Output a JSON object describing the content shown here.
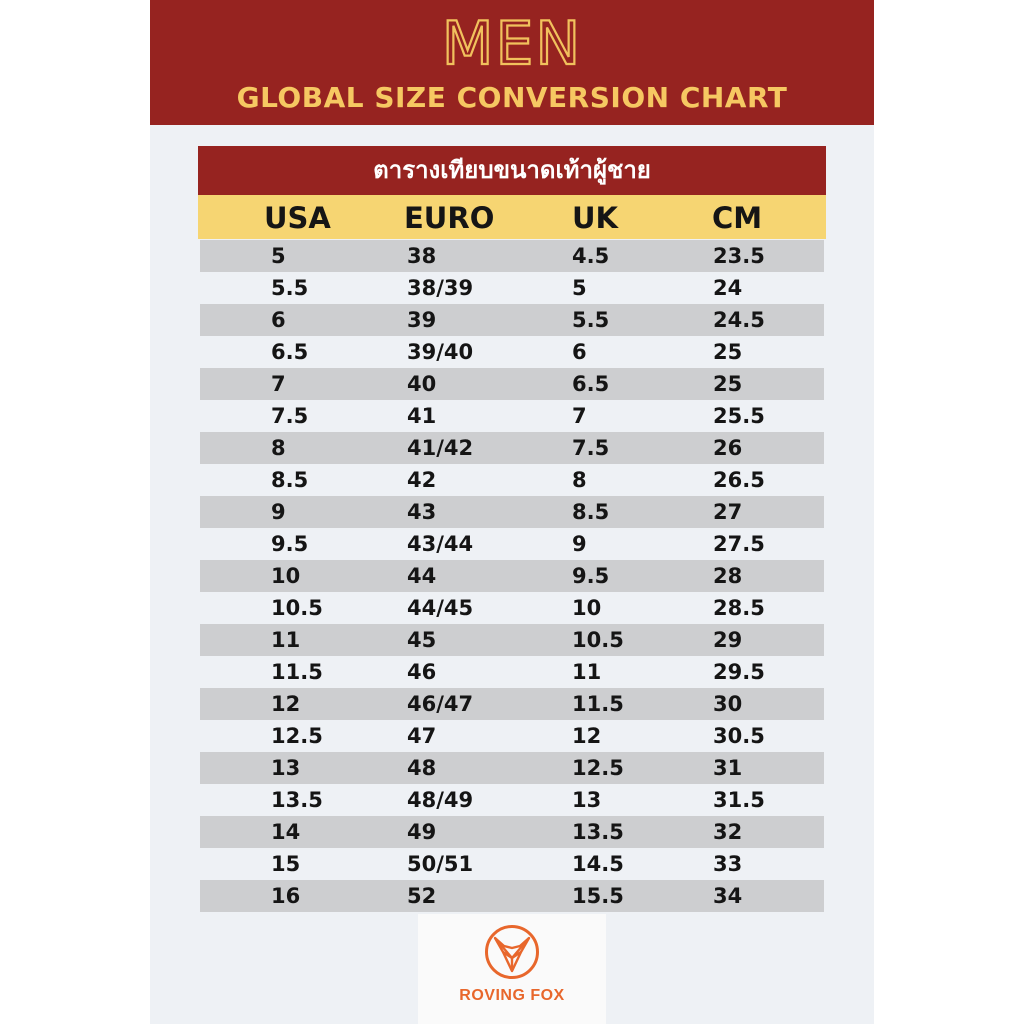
{
  "header": {
    "title": "MEN",
    "subtitle": "GLOBAL SIZE CONVERSION CHART"
  },
  "table": {
    "thai_title": "ตารางเทียบขนาดเท้าผู้ชาย",
    "columns": [
      "USA",
      "EURO",
      "UK",
      "CM"
    ],
    "rows": [
      [
        "5",
        "38",
        "4.5",
        "23.5"
      ],
      [
        "5.5",
        "38/39",
        "5",
        "24"
      ],
      [
        "6",
        "39",
        "5.5",
        "24.5"
      ],
      [
        "6.5",
        "39/40",
        "6",
        "25"
      ],
      [
        "7",
        "40",
        "6.5",
        "25"
      ],
      [
        "7.5",
        "41",
        "7",
        "25.5"
      ],
      [
        "8",
        "41/42",
        "7.5",
        "26"
      ],
      [
        "8.5",
        "42",
        "8",
        "26.5"
      ],
      [
        "9",
        "43",
        "8.5",
        "27"
      ],
      [
        "9.5",
        "43/44",
        "9",
        "27.5"
      ],
      [
        "10",
        "44",
        "9.5",
        "28"
      ],
      [
        "10.5",
        "44/45",
        "10",
        "28.5"
      ],
      [
        "11",
        "45",
        "10.5",
        "29"
      ],
      [
        "11.5",
        "46",
        "11",
        "29.5"
      ],
      [
        "12",
        "46/47",
        "11.5",
        "30"
      ],
      [
        "12.5",
        "47",
        "12",
        "30.5"
      ],
      [
        "13",
        "48",
        "12.5",
        "31"
      ],
      [
        "13.5",
        "48/49",
        "13",
        "31.5"
      ],
      [
        "14",
        "49",
        "13.5",
        "32"
      ],
      [
        "15",
        "50/51",
        "14.5",
        "33"
      ],
      [
        "16",
        "52",
        "15.5",
        "34"
      ]
    ]
  },
  "brand": {
    "name": "ROVING FOX",
    "logo_icon": "fox-head-icon",
    "color": "#e8672c"
  },
  "colors": {
    "banner": "#962320",
    "title_gold": "#f1c15d",
    "header_yellow": "#f6d572",
    "row_shade": "#cdced0",
    "page": "#eef1f5"
  }
}
